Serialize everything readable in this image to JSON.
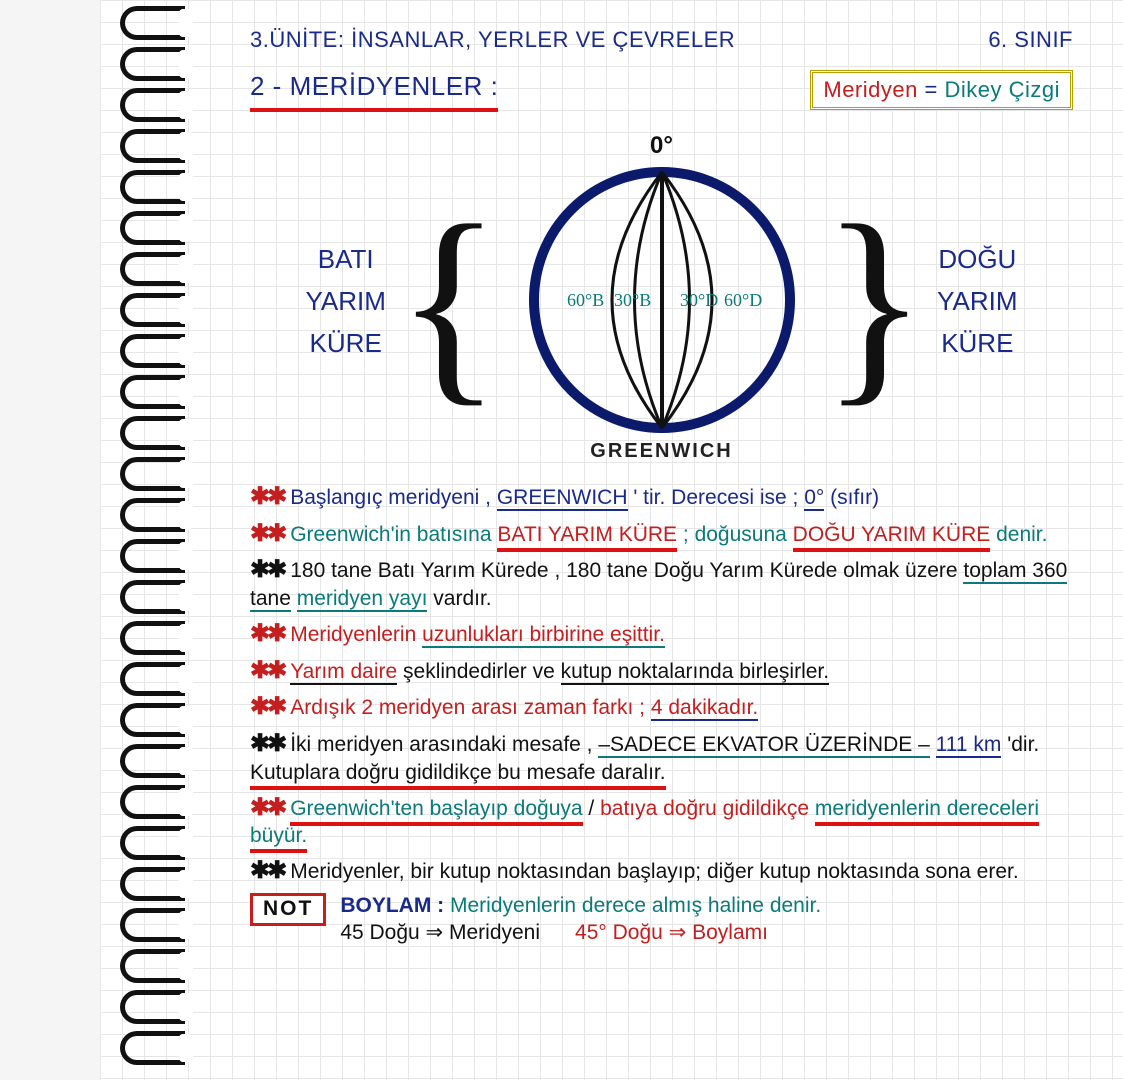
{
  "colors": {
    "ink_blue": "#1a2a8a",
    "ink_red": "#c41e1e",
    "ink_teal": "#0a7a7a",
    "ink_black": "#111111",
    "grid": "#e6e6e6",
    "box_border": "#b5a000",
    "globe_stroke": "#0b1a6b"
  },
  "header": {
    "unit": "3.ÜNİTE:",
    "unit_title": "İNSANLAR, YERLER VE ÇEVRELER",
    "grade": "6. SINIF",
    "section": "2 - MERİDYENLER :",
    "def_left": "Meridyen",
    "def_eq": "=",
    "def_right": "Dikey Çizgi"
  },
  "globe": {
    "zero": "0°",
    "west_label": "BATI\nYARIM\nKÜRE",
    "east_label": "DOĞU\nYARIM\nKÜRE",
    "greenwich": "GREENWICH",
    "meridians": [
      "60°B",
      "30°B",
      "30°D",
      "60°D"
    ],
    "circle_r": 130,
    "stroke_width_outer": 10,
    "stroke_width_inner": 3
  },
  "notes": [
    {
      "stars": "red",
      "segments": [
        {
          "t": "Başlangıç meridyeni , ",
          "c": "blue"
        },
        {
          "t": "GREENWICH",
          "c": "blue",
          "u": "blue"
        },
        {
          "t": " ' tir. Derecesi ise ; ",
          "c": "blue"
        },
        {
          "t": "0°",
          "c": "blue",
          "u": "blue"
        },
        {
          "t": " (sıfır)",
          "c": "blue"
        }
      ]
    },
    {
      "stars": "red",
      "segments": [
        {
          "t": "Greenwich'in ",
          "c": "teal"
        },
        {
          "t": "batısına ",
          "c": "teal"
        },
        {
          "t": "BATI YARIM KÜRE",
          "c": "red",
          "u": "red"
        },
        {
          "t": " ; doğusuna ",
          "c": "teal"
        },
        {
          "t": "DOĞU YARIM KÜRE",
          "c": "red",
          "u": "red"
        },
        {
          "t": " denir.",
          "c": "teal"
        }
      ]
    },
    {
      "stars": "black",
      "segments": [
        {
          "t": "180 tane Batı Yarım Kürede , 180 tane Doğu Yarım Kürede olmak üzere ",
          "c": "black"
        },
        {
          "t": "toplam 360 tane",
          "c": "black",
          "u": "teal"
        },
        {
          "t": " ",
          "c": "black"
        },
        {
          "t": "meridyen yayı",
          "c": "teal",
          "u": "teal"
        },
        {
          "t": " vardır.",
          "c": "black"
        }
      ]
    },
    {
      "stars": "red",
      "segments": [
        {
          "t": "Meridyenlerin ",
          "c": "red"
        },
        {
          "t": "uzunlukları birbirine eşittir.",
          "c": "red",
          "u": "teal"
        }
      ]
    },
    {
      "stars": "red",
      "segments": [
        {
          "t": "Yarım daire",
          "c": "red",
          "u": "black"
        },
        {
          "t": " şeklindedirler ve ",
          "c": "black"
        },
        {
          "t": "kutup noktalarında birleşirler.",
          "c": "black",
          "u": "black"
        }
      ]
    },
    {
      "stars": "red",
      "segments": [
        {
          "t": "Ardışık 2 meridyen arası zaman farkı ; ",
          "c": "red"
        },
        {
          "t": "4 dakikadır.",
          "c": "red",
          "u": "blue"
        }
      ]
    },
    {
      "stars": "black",
      "segments": [
        {
          "t": "İki meridyen arasındaki mesafe , ",
          "c": "black"
        },
        {
          "t": "–SADECE EKVATOR ÜZERİNDE –",
          "c": "black",
          "u": "teal"
        },
        {
          "t": " ",
          "c": "black"
        },
        {
          "t": "111 km",
          "c": "blue",
          "u": "blue"
        },
        {
          "t": " 'dir. ",
          "c": "black"
        },
        {
          "t": "Kutuplara doğru gidildikçe bu mesafe daralır.",
          "c": "black",
          "u": "red"
        }
      ]
    },
    {
      "stars": "red",
      "segments": [
        {
          "t": "Greenwich'ten başlayıp doğuya",
          "c": "teal",
          "u": "red"
        },
        {
          "t": " / ",
          "c": "black"
        },
        {
          "t": "batıya doğru gidildikçe",
          "c": "red"
        },
        {
          "t": " ",
          "c": "black"
        },
        {
          "t": "meridyenlerin dereceleri büyür.",
          "c": "teal",
          "u": "red"
        }
      ]
    },
    {
      "stars": "black",
      "segments": [
        {
          "t": "Meridyenler, bir kutup noktasından başlayıp; diğer kutup noktasında sona erer.",
          "c": "black"
        }
      ]
    }
  ],
  "not_box": "NOT",
  "boylam": {
    "title": "BOYLAM :",
    "def": "Meridyenlerin derece almış haline denir.",
    "ex_left": "45 Doğu ⇒ Meridyeni",
    "ex_right": "45° Doğu ⇒ Boylamı"
  }
}
